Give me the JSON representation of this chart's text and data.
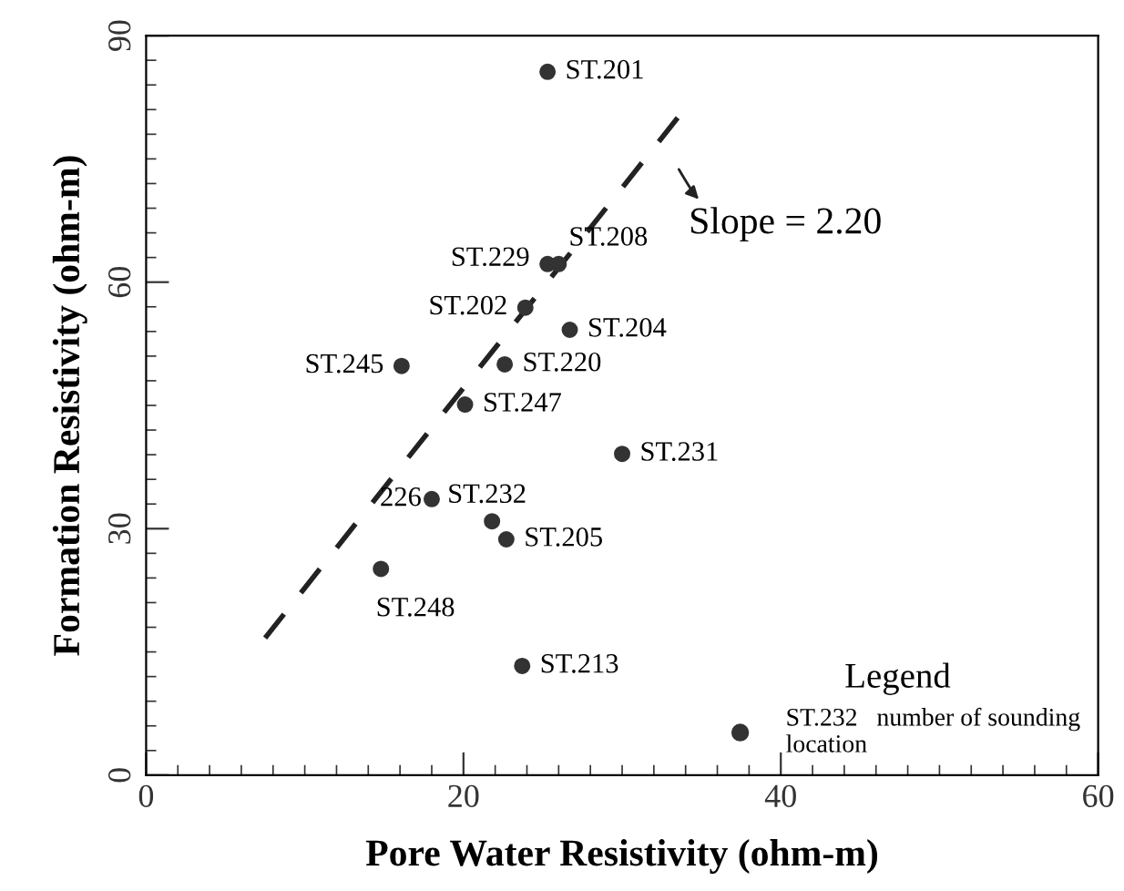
{
  "chart_data": {
    "type": "scatter",
    "xlabel": "Pore Water Resistivity (ohm-m)",
    "ylabel": "Formation Resistivity (ohm-m)",
    "legend_title": "Legend",
    "legend": "bottom right",
    "grid": false,
    "xlim": [
      0,
      60
    ],
    "xticks": [
      0,
      20,
      40,
      60
    ],
    "ylim": [
      0,
      90
    ],
    "yticks": [
      0,
      30,
      60,
      90
    ],
    "series": [
      {
        "name": "ST.232   number of sounding\nlocation",
        "color": "#333333",
        "marker": "circle",
        "x": [
          25.3,
          25.3,
          26.0,
          23.9,
          26.7,
          16.1,
          22.6,
          20.1,
          30.0,
          18.0,
          21.8,
          22.7,
          14.8,
          23.7
        ],
        "values": [
          85.6,
          62.2,
          62.2,
          56.9,
          54.2,
          49.8,
          50.0,
          45.1,
          39.1,
          33.6,
          30.9,
          28.7,
          25.1,
          13.3
        ]
      },
      {
        "type": "line",
        "line_style": "dashed",
        "color": "#222222",
        "x": [
          7.5,
          33.5
        ],
        "values": [
          16.7,
          80.0
        ]
      }
    ],
    "annotations": [
      {
        "text": "ST.201",
        "x": 25.3,
        "y": 85.6
      },
      {
        "text": "ST.229",
        "x": 25.3,
        "y": 62.2
      },
      {
        "text": "ST.208",
        "x": 26.0,
        "y": 62.2
      },
      {
        "text": "ST.202",
        "x": 23.9,
        "y": 56.9
      },
      {
        "text": "ST.204",
        "x": 26.7,
        "y": 54.2
      },
      {
        "text": "ST.245",
        "x": 16.1,
        "y": 49.8
      },
      {
        "text": "ST.220",
        "x": 22.6,
        "y": 50.0
      },
      {
        "text": "ST.247",
        "x": 20.1,
        "y": 45.1
      },
      {
        "text": "ST.231",
        "x": 30.0,
        "y": 39.1
      },
      {
        "text": "226",
        "x": 18.0,
        "y": 33.6
      },
      {
        "text": "ST.232",
        "x": 21.8,
        "y": 30.9
      },
      {
        "text": "ST.205",
        "x": 22.7,
        "y": 28.7
      },
      {
        "text": "ST.248",
        "x": 14.8,
        "y": 25.1
      },
      {
        "text": "ST.213",
        "x": 23.7,
        "y": 13.3
      },
      "Slope = 2.20"
    ]
  }
}
